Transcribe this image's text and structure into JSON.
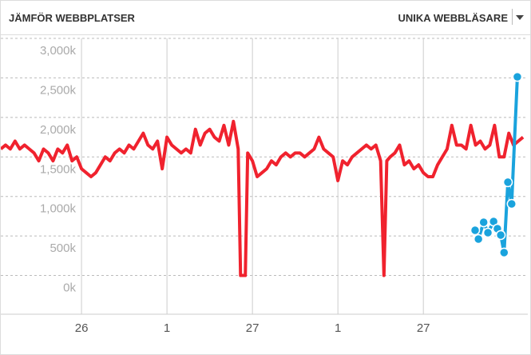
{
  "chart_data": {
    "type": "line",
    "title": "JÄMFÖR WEBBPLATSER",
    "metric": "UNIKA WEBBLÄSARE",
    "xlim": [
      0,
      111
    ],
    "xticks": [
      {
        "value": 17,
        "label": "26"
      },
      {
        "value": 35,
        "label": "1"
      },
      {
        "value": 53,
        "label": "27"
      },
      {
        "value": 71,
        "label": "1"
      },
      {
        "value": 89,
        "label": "27"
      }
    ],
    "ylim": [
      -490,
      3000
    ],
    "yticks": [
      {
        "value": 0,
        "label": "0k"
      },
      {
        "value": 500,
        "label": "500k"
      },
      {
        "value": 1000,
        "label": "1,000k"
      },
      {
        "value": 1500,
        "label": "1,500k"
      },
      {
        "value": 2000,
        "label": "2,000k"
      },
      {
        "value": 2500,
        "label": "2,500k"
      },
      {
        "value": 3000,
        "label": "3,000k"
      }
    ],
    "grid": true,
    "series": [
      {
        "color": "#f0222e",
        "markers": false,
        "x": [
          0,
          1,
          2,
          3,
          4,
          5,
          6,
          7,
          8,
          9,
          10,
          11,
          12,
          13,
          14,
          15,
          16,
          17,
          18,
          19,
          20,
          21,
          22,
          23,
          24,
          25,
          26,
          27,
          28,
          29,
          30,
          31,
          32,
          33,
          34,
          35,
          36,
          37,
          38,
          39,
          40,
          41,
          42,
          43,
          44,
          45,
          46,
          47,
          48,
          49,
          50,
          50.5,
          51.5,
          52,
          53,
          54,
          55,
          56,
          57,
          58,
          59,
          60,
          61,
          62,
          63,
          64,
          65,
          66,
          67,
          68,
          69,
          70,
          71,
          72,
          73,
          74,
          75,
          76,
          77,
          78,
          79,
          80,
          80.7,
          81.3,
          82,
          83,
          84,
          85,
          86,
          87,
          88,
          89,
          90,
          91,
          92,
          93,
          94,
          95,
          96,
          97,
          98,
          99,
          100,
          101,
          102,
          103,
          104,
          105,
          106,
          107,
          108,
          109,
          110
        ],
        "values": [
          1600,
          1650,
          1600,
          1700,
          1600,
          1650,
          1600,
          1550,
          1450,
          1600,
          1550,
          1450,
          1600,
          1550,
          1650,
          1450,
          1500,
          1350,
          1300,
          1250,
          1300,
          1400,
          1500,
          1450,
          1550,
          1600,
          1550,
          1650,
          1600,
          1700,
          1800,
          1650,
          1600,
          1700,
          1350,
          1750,
          1650,
          1600,
          1550,
          1600,
          1550,
          1850,
          1650,
          1800,
          1850,
          1750,
          1700,
          1900,
          1650,
          1950,
          1600,
          0,
          0,
          1550,
          1450,
          1250,
          1300,
          1350,
          1450,
          1400,
          1500,
          1550,
          1500,
          1550,
          1550,
          1500,
          1550,
          1600,
          1750,
          1600,
          1550,
          1500,
          1200,
          1450,
          1400,
          1500,
          1550,
          1600,
          1650,
          1600,
          1650,
          1450,
          0,
          1450,
          1500,
          1550,
          1650,
          1400,
          1450,
          1350,
          1400,
          1300,
          1250,
          1250,
          1400,
          1500,
          1600,
          1900,
          1650,
          1650,
          1600,
          1900,
          1650,
          1700,
          1600,
          1650,
          1900,
          1500,
          1500,
          1800,
          1650,
          1700,
          1750
        ]
      },
      {
        "color": "#1aa3dd",
        "markers": true,
        "x": [
          99.9,
          100.6,
          101.7,
          102.6,
          103.8,
          104.6,
          105.3,
          106,
          106.8,
          107.6,
          108.8
        ],
        "values": [
          572,
          461,
          673,
          542,
          683,
          592,
          512,
          290,
          1180,
          906,
          2513
        ]
      }
    ]
  }
}
